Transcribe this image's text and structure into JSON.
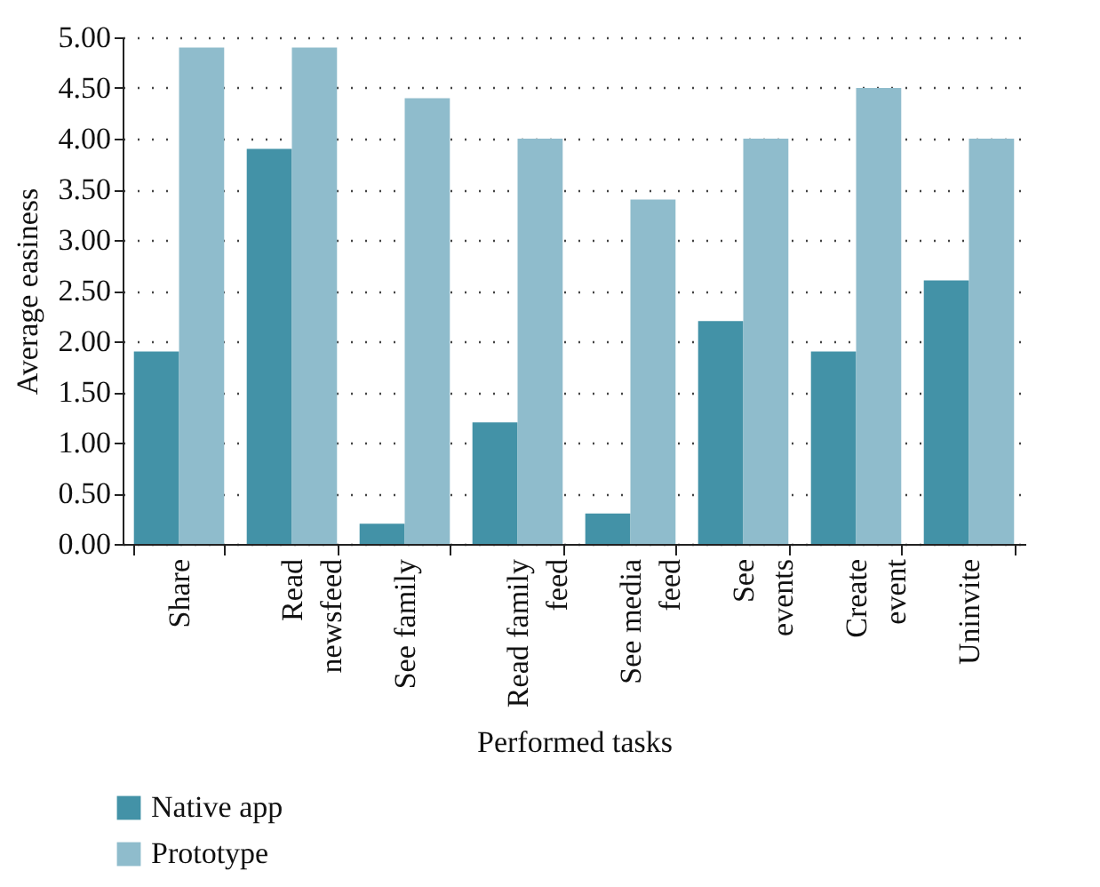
{
  "chart_data": {
    "type": "bar",
    "xlabel": "Performed tasks",
    "ylabel": "Average easiness",
    "categories": [
      "Share",
      "Read\nnewsfeed",
      "See family",
      "Read family\nfeed",
      "See media\nfeed",
      "See\nevents",
      "Create\nevent",
      "Uninvite"
    ],
    "series": [
      {
        "name": "Native app",
        "color": "#4392a7",
        "values": [
          1.9,
          3.9,
          0.2,
          1.2,
          0.3,
          2.2,
          1.9,
          2.6
        ]
      },
      {
        "name": "Prototype",
        "color": "#8fbccc",
        "values": [
          4.9,
          4.9,
          4.4,
          4.0,
          3.4,
          4.0,
          4.5,
          4.0
        ]
      }
    ],
    "ylim": [
      0,
      5
    ],
    "yticks": [
      {
        "value": 0,
        "label": "0.00"
      },
      {
        "value": 0.5,
        "label": "0.50"
      },
      {
        "value": 1,
        "label": "1.00"
      },
      {
        "value": 1.5,
        "label": "1.50"
      },
      {
        "value": 2,
        "label": "2.00"
      },
      {
        "value": 2.5,
        "label": "2.50"
      },
      {
        "value": 3,
        "label": "3.00"
      },
      {
        "value": 3.5,
        "label": "3.50"
      },
      {
        "value": 4,
        "label": "4.00"
      },
      {
        "value": 4.5,
        "label": "4.50"
      },
      {
        "value": 5,
        "label": "5.00"
      }
    ],
    "grid": "y",
    "legend": "bottom left"
  }
}
